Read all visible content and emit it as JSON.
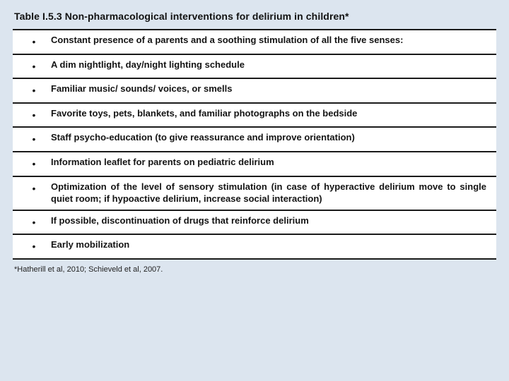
{
  "table": {
    "title": "Table I.5.3 Non-pharmacological interventions for delirium in children*",
    "title_fontsize": 14,
    "title_weight": "bold",
    "title_color": "#121212",
    "border_color": "#1a1a1a",
    "row_border_width": 2,
    "background_color": "#ffffff",
    "page_background": "#dce5ef",
    "bullet_char": "•",
    "cell_fontsize": 13,
    "cell_weight": "bold",
    "cell_color": "#141414",
    "rows": [
      "Constant presence of a parents and a soothing stimulation of all the five senses:",
      "A dim nightlight, day/night lighting schedule",
      "Familiar music/ sounds/ voices, or smells",
      "Favorite toys, pets, blankets, and familiar photographs on the bedside",
      "Staff psycho-education (to give reassurance and improve orientation)",
      "Information leaflet for parents on pediatric delirium",
      "Optimization of the level of sensory stimulation (in case of hyperactive delirium move to single quiet room; if hypoactive delirium, increase social interaction)",
      "If possible, discontinuation of drugs that reinforce delirium",
      "Early mobilization"
    ]
  },
  "footnote": {
    "text": "*Hatherill et al, 2010; Schieveld et al, 2007.",
    "fontsize": 11,
    "color": "#222222"
  }
}
